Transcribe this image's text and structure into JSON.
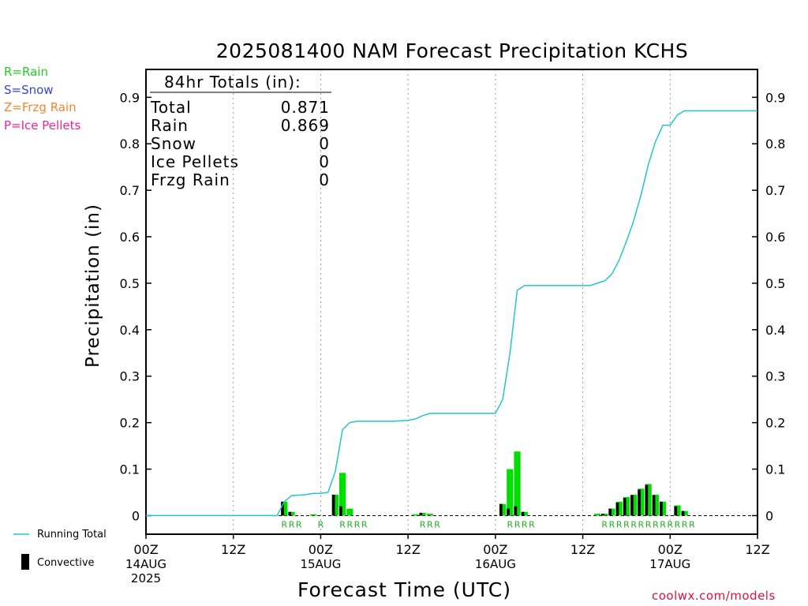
{
  "title": "2025081400 NAM Forecast Precipitation KCHS",
  "ptype_legend": [
    {
      "label": "R=Rain",
      "color": "#22cc22"
    },
    {
      "label": "S=Snow",
      "color": "#3344dd"
    },
    {
      "label": "Z=Frzg Rain",
      "color": "#ee8833"
    },
    {
      "label": "P=Ice Pellets",
      "color": "#ee2299"
    }
  ],
  "bottom_legend": {
    "running_total": "Running Total",
    "convective": "Convective"
  },
  "website": "coolwx.com/models",
  "totals": {
    "header": "84hr Totals (in):",
    "rows": [
      {
        "label": "Total",
        "value": "0.871"
      },
      {
        "label": "Rain",
        "value": "0.869"
      },
      {
        "label": "Snow",
        "value": "0"
      },
      {
        "label": "Ice Pellets",
        "value": "0"
      },
      {
        "label": "Frzg Rain",
        "value": "0"
      }
    ]
  },
  "colors": {
    "running_total": "#22c5cc",
    "rain_bar": "#00dd00",
    "convective_bar": "#000000",
    "ptype_marker": "#22aa22",
    "grid": "#999999",
    "website": "#e0103c"
  },
  "chart_data": {
    "type": "bar",
    "title": "2025081400 NAM Forecast Precipitation KCHS",
    "xlabel": "Forecast Time (UTC)",
    "ylabel": "Precipitation (in)",
    "xlim": [
      0,
      84
    ],
    "ylim": [
      -0.04,
      0.96
    ],
    "grid": "vertical dotted at 12Z and 00Z",
    "xticks": [
      {
        "hour": 0,
        "label": "00Z",
        "sub": "14AUG",
        "sub2": "2025"
      },
      {
        "hour": 12,
        "label": "12Z"
      },
      {
        "hour": 24,
        "label": "00Z",
        "sub": "15AUG"
      },
      {
        "hour": 36,
        "label": "12Z"
      },
      {
        "hour": 48,
        "label": "00Z",
        "sub": "16AUG"
      },
      {
        "hour": 60,
        "label": "12Z"
      },
      {
        "hour": 72,
        "label": "00Z",
        "sub": "17AUG"
      },
      {
        "hour": 84,
        "label": "12Z"
      }
    ],
    "yticks": [
      0,
      0.1,
      0.2,
      0.3,
      0.4,
      0.5,
      0.6,
      0.7,
      0.8,
      0.9
    ],
    "ytick_labels": [
      "0",
      "0.1",
      "0.2",
      "0.3",
      "0.4",
      "0.5",
      "0.6",
      "0.7",
      "0.8",
      "0.9"
    ],
    "series": [
      {
        "name": "Running Total",
        "kind": "line",
        "points": [
          [
            0,
            0
          ],
          [
            18,
            0
          ],
          [
            19,
            0.03
          ],
          [
            20,
            0.043
          ],
          [
            21,
            0.044
          ],
          [
            22,
            0.045
          ],
          [
            23,
            0.048
          ],
          [
            24,
            0.048
          ],
          [
            25,
            0.05
          ],
          [
            26,
            0.095
          ],
          [
            27,
            0.185
          ],
          [
            28,
            0.2
          ],
          [
            29,
            0.203
          ],
          [
            30,
            0.203
          ],
          [
            31,
            0.203
          ],
          [
            32,
            0.203
          ],
          [
            33,
            0.203
          ],
          [
            34,
            0.203
          ],
          [
            35,
            0.204
          ],
          [
            36,
            0.205
          ],
          [
            37,
            0.208
          ],
          [
            38,
            0.215
          ],
          [
            39,
            0.22
          ],
          [
            40,
            0.22
          ],
          [
            41,
            0.22
          ],
          [
            42,
            0.22
          ],
          [
            43,
            0.22
          ],
          [
            44,
            0.22
          ],
          [
            45,
            0.22
          ],
          [
            46,
            0.22
          ],
          [
            47,
            0.22
          ],
          [
            48,
            0.22
          ],
          [
            49,
            0.25
          ],
          [
            50,
            0.35
          ],
          [
            51,
            0.485
          ],
          [
            52,
            0.495
          ],
          [
            53,
            0.495
          ],
          [
            54,
            0.495
          ],
          [
            55,
            0.495
          ],
          [
            56,
            0.495
          ],
          [
            57,
            0.495
          ],
          [
            58,
            0.495
          ],
          [
            59,
            0.495
          ],
          [
            60,
            0.495
          ],
          [
            61,
            0.495
          ],
          [
            62,
            0.5
          ],
          [
            63,
            0.505
          ],
          [
            64,
            0.52
          ],
          [
            65,
            0.55
          ],
          [
            66,
            0.59
          ],
          [
            67,
            0.635
          ],
          [
            68,
            0.69
          ],
          [
            69,
            0.755
          ],
          [
            70,
            0.805
          ],
          [
            71,
            0.84
          ],
          [
            72,
            0.84
          ],
          [
            73,
            0.862
          ],
          [
            74,
            0.871
          ],
          [
            84,
            0.871
          ]
        ]
      },
      {
        "name": "Rain",
        "kind": "bar",
        "bars": [
          [
            19,
            0.03
          ],
          [
            20,
            0.008
          ],
          [
            23,
            0.003
          ],
          [
            26,
            0.045
          ],
          [
            27,
            0.092
          ],
          [
            28,
            0.015
          ],
          [
            37,
            0.003
          ],
          [
            38,
            0.006
          ],
          [
            39,
            0.004
          ],
          [
            49,
            0.025
          ],
          [
            50,
            0.1
          ],
          [
            51,
            0.138
          ],
          [
            52,
            0.008
          ],
          [
            62,
            0.004
          ],
          [
            63,
            0.004
          ],
          [
            64,
            0.015
          ],
          [
            65,
            0.03
          ],
          [
            66,
            0.04
          ],
          [
            67,
            0.045
          ],
          [
            68,
            0.058
          ],
          [
            69,
            0.068
          ],
          [
            70,
            0.045
          ],
          [
            71,
            0.03
          ],
          [
            73,
            0.022
          ],
          [
            74,
            0.01
          ]
        ]
      },
      {
        "name": "Convective",
        "kind": "bar",
        "bars": [
          [
            19,
            0.03
          ],
          [
            20,
            0.008
          ],
          [
            26,
            0.045
          ],
          [
            27,
            0.02
          ],
          [
            38,
            0.006
          ],
          [
            49,
            0.025
          ],
          [
            50,
            0.015
          ],
          [
            51,
            0.02
          ],
          [
            52,
            0.008
          ],
          [
            63,
            0.004
          ],
          [
            64,
            0.015
          ],
          [
            65,
            0.028
          ],
          [
            66,
            0.038
          ],
          [
            67,
            0.044
          ],
          [
            68,
            0.056
          ],
          [
            69,
            0.066
          ],
          [
            70,
            0.044
          ],
          [
            71,
            0.03
          ],
          [
            73,
            0.02
          ],
          [
            74,
            0.01
          ]
        ]
      }
    ],
    "ptype_markers": {
      "label": "R",
      "hours": [
        19,
        20,
        21,
        24,
        27,
        28,
        29,
        30,
        38,
        39,
        40,
        50,
        51,
        52,
        53,
        63,
        64,
        65,
        66,
        67,
        68,
        69,
        70,
        71,
        72,
        73,
        74,
        75
      ]
    }
  }
}
